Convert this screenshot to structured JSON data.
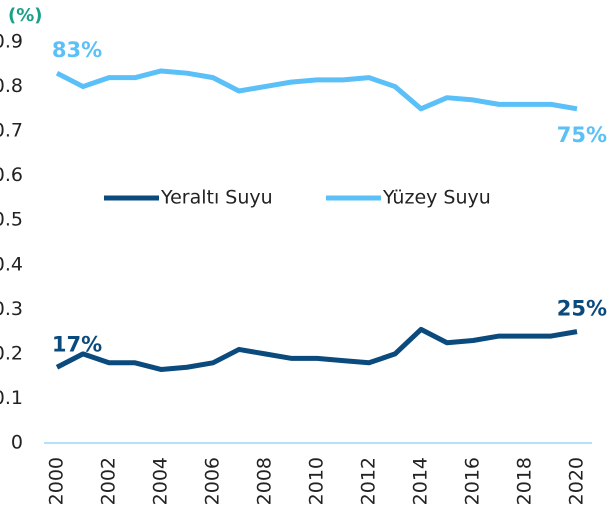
{
  "chart_data": {
    "type": "line",
    "y_label": "(%)",
    "categories": [
      "2000",
      null,
      "2002",
      null,
      "2004",
      null,
      "2006",
      null,
      "2008",
      null,
      "2010",
      null,
      "2012",
      null,
      "2014",
      null,
      "2016",
      null,
      "2018",
      null,
      "2020"
    ],
    "series": [
      {
        "name": "Yeraltı Suyu",
        "color": "#0b4a7d",
        "values": [
          0.17,
          0.2,
          0.18,
          0.18,
          0.165,
          0.17,
          0.18,
          0.21,
          0.2,
          0.19,
          0.19,
          0.185,
          0.18,
          0.2,
          0.255,
          0.225,
          0.23,
          0.24,
          0.24,
          0.24,
          0.25
        ],
        "value_labels": [
          "17%",
          null,
          null,
          null,
          null,
          null,
          null,
          null,
          null,
          null,
          null,
          null,
          null,
          null,
          null,
          null,
          null,
          null,
          null,
          null,
          "25%"
        ]
      },
      {
        "name": "Yüzey Suyu",
        "color": "#5bc0f8",
        "values": [
          0.83,
          0.8,
          0.82,
          0.82,
          0.835,
          0.83,
          0.82,
          0.79,
          0.8,
          0.81,
          0.815,
          0.815,
          0.82,
          0.8,
          0.75,
          0.775,
          0.77,
          0.76,
          0.76,
          0.76,
          0.75
        ],
        "value_labels": [
          "83%",
          null,
          null,
          null,
          null,
          null,
          null,
          null,
          null,
          null,
          null,
          null,
          null,
          null,
          null,
          null,
          null,
          null,
          null,
          null,
          "75%"
        ]
      }
    ],
    "ylim": [
      0,
      0.9
    ],
    "yticks": [
      0,
      0.1,
      0.2,
      0.3,
      0.4,
      0.5,
      0.6,
      0.7,
      0.8,
      0.9
    ],
    "legend": "center"
  }
}
